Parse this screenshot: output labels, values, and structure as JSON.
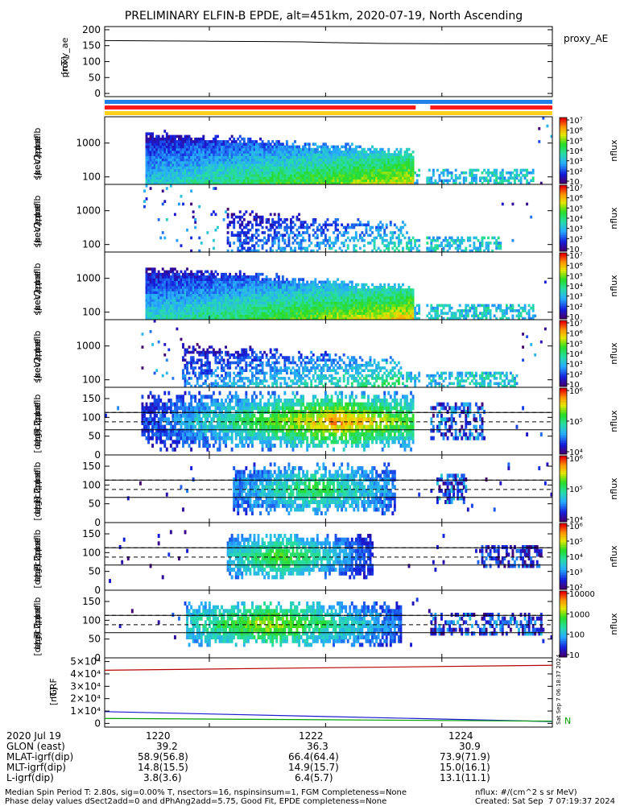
{
  "title": "PRELIMINARY ELFIN-B EPDE, alt=451km, 2020-07-19, North Ascending",
  "chart_data": [
    {
      "type": "line",
      "name": "proxy_ae",
      "ylabel": "proxy_ae\n[nT]",
      "ylim": [
        -10,
        210
      ],
      "yticks": [
        "0",
        "50",
        "100",
        "150",
        "200"
      ],
      "ytick_values": [
        0,
        50,
        100,
        150,
        200
      ],
      "legend": [
        "proxy_AE"
      ],
      "series": [
        {
          "name": "proxy_AE",
          "color": "#000000",
          "x": [
            1218.2,
            1219.0,
            1220.0,
            1221.0,
            1221.6,
            1222.0,
            1223.0,
            1224.0,
            1225.9
          ],
          "y": [
            166,
            165,
            164,
            163,
            162,
            160,
            157,
            156,
            156
          ]
        }
      ]
    },
    {
      "type": "bar",
      "name": "data-status-bars",
      "bars": [
        {
          "color": "#1e7fe6",
          "segments": [
            [
              1218.2,
              1225.9
            ]
          ]
        },
        {
          "color": "#ff1a1a",
          "segments": [
            [
              1218.2,
              1223.55
            ],
            [
              1223.8,
              1225.9
            ]
          ]
        },
        {
          "color": "#ffd21a",
          "segments": [
            [
              1218.2,
              1225.9
            ]
          ]
        }
      ]
    },
    {
      "type": "heatmap",
      "name": "pef en spec2plot omni",
      "ylabel": "elb\npef\nen\nspec2plot\n[keV]",
      "yscale": "log",
      "ylim": [
        60,
        6000
      ],
      "yticks": [
        "100",
        "1000"
      ],
      "ytick_values": [
        100,
        1000
      ],
      "colorbar": {
        "label": "nflux",
        "ticks": [
          "10",
          "10²",
          "10³",
          "10⁴",
          "10⁵",
          "10⁶",
          "10⁷"
        ],
        "range": [
          1,
          7
        ]
      },
      "profile": {
        "start": 1218.9,
        "end": 1223.5,
        "peak": 1221.2,
        "low_gap": [
          1223.6,
          1223.7
        ],
        "tail_end": 1225.6,
        "maxlevel": 6.2,
        "ecut_hi": 1800,
        "ecut_lo": 180,
        "density": 0.9
      }
    },
    {
      "type": "heatmap",
      "name": "pef en spec2plot anti",
      "ylabel": "elb\npef\nen\nspec2plot\n[keV]",
      "yscale": "log",
      "ylim": [
        60,
        6000
      ],
      "yticks": [
        "100",
        "1000"
      ],
      "ytick_values": [
        100,
        1000
      ],
      "colorbar": {
        "label": "nflux",
        "ticks": [
          "10",
          "10²",
          "10³",
          "10⁴",
          "10⁵",
          "10⁶",
          "10⁷"
        ],
        "range": [
          1,
          7
        ]
      },
      "profile": {
        "start": 1220.3,
        "end": 1223.4,
        "peak": 1222.0,
        "low_gap": [
          1223.6,
          1223.7
        ],
        "tail_end": 1225.0,
        "maxlevel": 4.3,
        "ecut_hi": 900,
        "ecut_lo": 150,
        "density": 0.35
      }
    },
    {
      "type": "heatmap",
      "name": "pef en spec2plot perp",
      "ylabel": "elb\npef\nen\nspec2plot\n[keV]",
      "yscale": "log",
      "ylim": [
        60,
        6000
      ],
      "yticks": [
        "100",
        "1000"
      ],
      "ytick_values": [
        100,
        1000
      ],
      "colorbar": {
        "label": "nflux",
        "ticks": [
          "10",
          "10²",
          "10³",
          "10⁴",
          "10⁵",
          "10⁶",
          "10⁷"
        ],
        "range": [
          1,
          7
        ]
      },
      "profile": {
        "start": 1218.9,
        "end": 1223.5,
        "peak": 1221.5,
        "low_gap": [
          1223.6,
          1223.7
        ],
        "tail_end": 1225.6,
        "maxlevel": 6.4,
        "ecut_hi": 1800,
        "ecut_lo": 180,
        "density": 0.9
      }
    },
    {
      "type": "heatmap",
      "name": "pef en spec2plot para",
      "ylabel": "elb\npef\nen\nspec2plot\n[keV]",
      "yscale": "log",
      "ylim": [
        60,
        6000
      ],
      "yticks": [
        "100",
        "1000"
      ],
      "ytick_values": [
        100,
        1000
      ],
      "colorbar": {
        "label": "nflux",
        "ticks": [
          "10",
          "10²",
          "10³",
          "10⁴",
          "10⁵",
          "10⁶",
          "10⁷"
        ],
        "range": [
          1,
          7
        ]
      },
      "profile": {
        "start": 1219.5,
        "end": 1223.3,
        "peak": 1222.7,
        "low_gap": [
          1223.6,
          1223.7
        ],
        "tail_end": 1225.3,
        "maxlevel": 4.8,
        "ecut_hi": 1000,
        "ecut_lo": 140,
        "density": 0.45
      }
    },
    {
      "type": "heatmap",
      "name": "pef pa spec2plot ch0LC",
      "ylabel": "elb\npef\npa\nspec2plot\nch0LC\n[deg]",
      "ylim": [
        0,
        180
      ],
      "yticks": [
        "0",
        "50",
        "100",
        "150"
      ],
      "ytick_values": [
        0,
        50,
        100,
        150
      ],
      "reference_lines": {
        "solid": [
          67,
          113
        ],
        "dashed": [
          88,
          113
        ]
      },
      "colorbar": {
        "label": "nflux",
        "ticks": [
          "10⁴",
          "10⁵",
          "10⁶"
        ],
        "range": [
          3.5,
          6.5
        ]
      },
      "profile": {
        "start": 1218.8,
        "end": 1223.5,
        "tail_start": 1223.8,
        "tail_end": 1224.7,
        "peak": 1222.2,
        "spread": 65,
        "maxlevel": 5.9
      }
    },
    {
      "type": "heatmap",
      "name": "pef pa spec2plot ch1LC",
      "ylabel": "elb\npef\npa\nspec2plot\nch1LC\n[deg]",
      "ylim": [
        0,
        180
      ],
      "yticks": [
        "0",
        "50",
        "100",
        "150"
      ],
      "ytick_values": [
        0,
        50,
        100,
        150
      ],
      "reference_lines": {
        "solid": [
          67,
          113
        ],
        "dashed": [
          88,
          113
        ]
      },
      "colorbar": {
        "label": "nflux",
        "ticks": [
          "10⁴",
          "10⁵",
          "10⁶"
        ],
        "range": [
          3.5,
          6.5
        ]
      },
      "profile": {
        "start": 1220.4,
        "end": 1223.2,
        "tail_start": 1223.9,
        "tail_end": 1224.4,
        "peak": 1221.8,
        "spread": 55,
        "maxlevel": 5.0
      }
    },
    {
      "type": "heatmap",
      "name": "pef pa spec2plot ch2LC",
      "ylabel": "elb\npef\npa\nspec2plot\nch2LC\n[deg]",
      "ylim": [
        0,
        180
      ],
      "yticks": [
        "0",
        "50",
        "100",
        "150"
      ],
      "ytick_values": [
        0,
        50,
        100,
        150
      ],
      "reference_lines": {
        "solid": [
          67,
          113
        ],
        "dashed": [
          88,
          113
        ]
      },
      "colorbar": {
        "label": "nflux",
        "ticks": [
          "10²",
          "10³",
          "10⁴",
          "10⁵",
          "10⁶"
        ],
        "range": [
          1.8,
          6.2
        ]
      },
      "profile": {
        "start": 1220.3,
        "end": 1222.8,
        "tail_start": 1224.6,
        "tail_end": 1225.7,
        "peak": 1221.2,
        "spread": 50,
        "maxlevel": 4.4
      }
    },
    {
      "type": "heatmap",
      "name": "pef pa spec2plot ch3LC",
      "ylabel": "elb\npef\npa\nspec2plot\nch3LC\n[deg]",
      "ylim": [
        0,
        180
      ],
      "yticks": [
        "0",
        "50",
        "100",
        "150"
      ],
      "ytick_values": [
        0,
        50,
        100,
        150
      ],
      "reference_lines": {
        "solid": [
          67,
          113
        ],
        "dashed": [
          88,
          113
        ]
      },
      "colorbar": {
        "label": "nflux",
        "ticks": [
          "10",
          "100",
          "1000",
          "10000"
        ],
        "range": [
          1,
          4.2
        ]
      },
      "profile": {
        "start": 1219.6,
        "end": 1223.3,
        "tail_start": 1223.8,
        "tail_end": 1225.7,
        "peak": 1221.0,
        "spread": 50,
        "maxlevel": 3.1
      }
    },
    {
      "type": "line",
      "name": "IGRF",
      "ylabel": "IGRF\n[nT]",
      "ylim": [
        -3000,
        53000
      ],
      "yticks": [
        "0",
        "1×10⁴",
        "2×10⁴",
        "3×10⁴",
        "4×10⁴",
        "5×10⁴"
      ],
      "ytick_values": [
        0,
        10000,
        20000,
        30000,
        40000,
        50000
      ],
      "legend": [
        "N"
      ],
      "series": [
        {
          "name": "",
          "color": "#b50000",
          "x": [
            1218.2,
            1225.9
          ],
          "y": [
            43000,
            47000
          ]
        },
        {
          "name": "",
          "color": "#1a1ad0",
          "x": [
            1218.2,
            1225.9
          ],
          "y": [
            9500,
            1500
          ]
        },
        {
          "name": "",
          "color": "#00a000",
          "x": [
            1218.2,
            1225.9
          ],
          "y": [
            4000,
            1800
          ]
        }
      ]
    }
  ],
  "time_axis": {
    "range": [
      1218.2,
      1225.9
    ],
    "ticks": [
      {
        "value": 1220,
        "label": "1220"
      },
      {
        "value": 1222,
        "label": "1222"
      },
      {
        "value": 1224,
        "label": "1224"
      }
    ]
  },
  "footer": {
    "rows": [
      {
        "label": "2020 Jul 19",
        "values": [
          "1220",
          "1222",
          "1224"
        ]
      },
      {
        "label": "GLON (east)",
        "values": [
          "39.2",
          "36.3",
          "30.9"
        ]
      },
      {
        "label": "MLAT-igrf(dip)",
        "values": [
          "58.9(56.8)",
          "66.4(64.4)",
          "73.9(71.9)"
        ]
      },
      {
        "label": "MLT-igrf(dip)",
        "values": [
          "14.8(15.5)",
          "14.9(15.7)",
          "15.0(16.1)"
        ]
      },
      {
        "label": "L-igrf(dip)",
        "values": [
          "3.8(3.6)",
          "6.4(5.7)",
          "13.1(11.1)"
        ]
      }
    ],
    "note_line1": "Median Spin Period T: 2.80s, sig=0.00% T, nsectors=16, nspinsinsum=1, FGM Completeness=None",
    "note_line2": "Phase delay values dSect2add=0 and dPhAng2add=5.75, Good Fit, EPDE completeness=None",
    "units": "nflux: #/(cm^2 s sr MeV)",
    "created": "Created: Sat Sep  7 07:19:37 2024",
    "side_stamp": "Sat Sep  7 06:18:37 2024"
  },
  "colors": {
    "axis": "#000000",
    "ref_line": "#000000"
  }
}
